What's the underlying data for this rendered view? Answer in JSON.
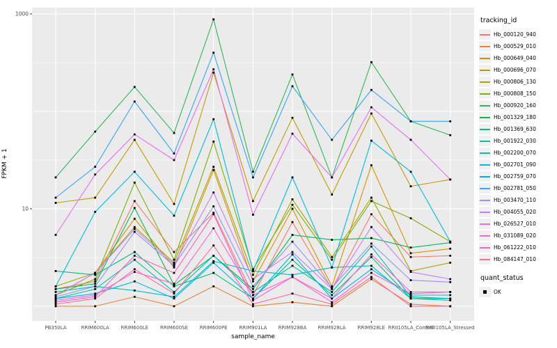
{
  "figure": {
    "y_axis_title": "FPKM + 1",
    "x_axis_title": "sample_name"
  },
  "legend": {
    "title": "tracking_id",
    "items": [
      {
        "label": "Hb_000120_940",
        "color": "#F8766D"
      },
      {
        "label": "Hb_000529_010",
        "color": "#EA8331"
      },
      {
        "label": "Hb_000649_040",
        "color": "#D89000"
      },
      {
        "label": "Hb_000696_070",
        "color": "#C09B00"
      },
      {
        "label": "Hb_000806_130",
        "color": "#A3A500"
      },
      {
        "label": "Hb_000808_150",
        "color": "#7CAE00"
      },
      {
        "label": "Hb_000920_160",
        "color": "#2FB657"
      },
      {
        "label": "Hb_001329_180",
        "color": "#00BB4E"
      },
      {
        "label": "Hb_001369_630",
        "color": "#00BF7D"
      },
      {
        "label": "Hb_001922_030",
        "color": "#00C1A3"
      },
      {
        "label": "Hb_002200_070",
        "color": "#00BFC4"
      },
      {
        "label": "Hb_002701_090",
        "color": "#00BAE0"
      },
      {
        "label": "Hb_002759_070",
        "color": "#00B0F6"
      },
      {
        "label": "Hb_002781_050",
        "color": "#35A2FF"
      },
      {
        "label": "Hb_003470_110",
        "color": "#9590FF"
      },
      {
        "label": "Hb_004055_020",
        "color": "#C77CFF"
      },
      {
        "label": "Hb_026527_010",
        "color": "#E76BF3"
      },
      {
        "label": "Hb_031089_020",
        "color": "#FA62DB"
      },
      {
        "label": "Hb_061222_010",
        "color": "#FF61C3"
      },
      {
        "label": "Hb_084147_010",
        "color": "#FF67A4"
      }
    ]
  },
  "quant_legend": {
    "title": "quant_status",
    "items": [
      {
        "label": "OK"
      }
    ]
  },
  "chart_data": {
    "type": "line",
    "title": "",
    "xlabel": "sample_name",
    "ylabel": "FPKM + 1",
    "y_scale": "log10",
    "ylim": [
      1,
      1000
    ],
    "ytick_labels": [
      {
        "value": 10,
        "label": "10"
      },
      {
        "value": 1000,
        "label": "1000"
      }
    ],
    "y_major_gridlines": [
      1,
      10,
      100,
      1000
    ],
    "y_minor_gridlines": [
      3.162,
      31.62,
      316.2
    ],
    "grid": "on",
    "panel_background": "#EBEBEB",
    "gridline_color": "#FFFFFF",
    "point_marker": "black-square",
    "legend_position": "right",
    "categories": [
      "PB350LA",
      "RRIM600LA",
      "RRIM600LE",
      "RRIM600SE",
      "RRIM600PE",
      "RRIM901LA",
      "RRIM928BA",
      "RRIM928LA",
      "RRIM928LE",
      "RRII105LA_Control",
      "RRII105LA_Stressed"
    ],
    "series": [
      {
        "name": "Hb_000120_940",
        "color": "#F8766D",
        "values": [
          1.5,
          1.8,
          12,
          3.6,
          9.1,
          1.3,
          7.3,
          1.5,
          8.8,
          3.2,
          3.3
        ]
      },
      {
        "name": "Hb_000529_010",
        "color": "#EA8331",
        "values": [
          1.0,
          1.0,
          1.25,
          1.0,
          1.6,
          1.0,
          1.1,
          1.0,
          1.9,
          1.05,
          1.0
        ]
      },
      {
        "name": "Hb_000649_040",
        "color": "#D89000",
        "values": [
          1.3,
          2.2,
          7.9,
          2.5,
          25,
          1.8,
          10,
          1.6,
          28,
          3.5,
          3.9
        ]
      },
      {
        "name": "Hb_000696_070",
        "color": "#C09B00",
        "values": [
          11.5,
          13,
          51,
          11.2,
          250,
          12,
          86,
          14,
          95,
          17,
          20
        ]
      },
      {
        "name": "Hb_000806_130",
        "color": "#A3A500",
        "values": [
          1.6,
          2.2,
          6.5,
          2.8,
          27,
          2.1,
          12.5,
          3.2,
          13,
          2.3,
          2.8
        ]
      },
      {
        "name": "Hb_000808_150",
        "color": "#7CAE00",
        "values": [
          1.3,
          1.9,
          18.6,
          3.0,
          49,
          2.4,
          11,
          3.0,
          12,
          8.0,
          4.6
        ]
      },
      {
        "name": "Hb_000920_160",
        "color": "#2FB657",
        "values": [
          21,
          62,
          178,
          60,
          880,
          24,
          239,
          21,
          320,
          79,
          57
        ]
      },
      {
        "name": "Hb_001329_180",
        "color": "#00BB4E",
        "values": [
          1.5,
          1.7,
          10.2,
          1.65,
          3.3,
          1.5,
          5.4,
          4.8,
          5.0,
          4.0,
          4.5
        ]
      },
      {
        "name": "Hb_001369_630",
        "color": "#00BF7D",
        "values": [
          2.3,
          2.1,
          3.6,
          1.6,
          2.2,
          1.2,
          3.0,
          1.3,
          3.2,
          1.2,
          1.2
        ]
      },
      {
        "name": "Hb_001922_030",
        "color": "#00C1A3",
        "values": [
          1.2,
          1.5,
          3.0,
          1.4,
          3.3,
          1.4,
          2.6,
          1.4,
          4.1,
          1.25,
          1.2
        ]
      },
      {
        "name": "Hb_002200_070",
        "color": "#00BFC4",
        "values": [
          1.4,
          1.6,
          1.45,
          1.25,
          2.9,
          2.3,
          2.1,
          2.5,
          2.6,
          1.2,
          1.15
        ]
      },
      {
        "name": "Hb_002701_090",
        "color": "#00BAE0",
        "values": [
          1.6,
          9.3,
          24,
          8.5,
          83,
          2.3,
          21,
          2.5,
          50,
          24,
          4.6
        ]
      },
      {
        "name": "Hb_002759_070",
        "color": "#00B0F6",
        "values": [
          1.2,
          1.35,
          1.8,
          1.2,
          2.8,
          1.2,
          3.4,
          1.2,
          2.4,
          1.3,
          1.3
        ]
      },
      {
        "name": "Hb_002781_050",
        "color": "#35A2FF",
        "values": [
          13,
          27,
          126,
          37,
          400,
          21,
          181,
          51,
          166,
          79,
          79
        ]
      },
      {
        "name": "Hb_003470_110",
        "color": "#9590FF",
        "values": [
          1.25,
          1.6,
          5.8,
          2.6,
          10.6,
          1.6,
          4.6,
          1.55,
          4.4,
          1.85,
          1.77
        ]
      },
      {
        "name": "Hb_004055_020",
        "color": "#C77CFF",
        "values": [
          1.3,
          2.2,
          6.2,
          2.7,
          14.7,
          1.9,
          3.6,
          1.5,
          6.5,
          2.25,
          1.9
        ]
      },
      {
        "name": "Hb_026527_010",
        "color": "#E76BF3",
        "values": [
          5.4,
          22.5,
          58,
          31.6,
          270,
          8.7,
          59,
          21,
          110,
          51,
          20
        ]
      },
      {
        "name": "Hb_031089_020",
        "color": "#FA62DB",
        "values": [
          1.15,
          1.3,
          2.25,
          1.7,
          6.3,
          1.3,
          2.0,
          1.2,
          3.4,
          1.4,
          1.4
        ]
      },
      {
        "name": "Hb_061222_010",
        "color": "#FF61C3",
        "values": [
          1.1,
          1.25,
          3.3,
          2.2,
          8.8,
          1.15,
          2.0,
          1.1,
          2.2,
          1.35,
          1.4
        ]
      },
      {
        "name": "Hb_084147_010",
        "color": "#FF67A4",
        "values": [
          1.05,
          1.2,
          2.4,
          1.35,
          4.2,
          1.05,
          1.35,
          1.05,
          2.0,
          1.0,
          1.0
        ]
      }
    ]
  }
}
